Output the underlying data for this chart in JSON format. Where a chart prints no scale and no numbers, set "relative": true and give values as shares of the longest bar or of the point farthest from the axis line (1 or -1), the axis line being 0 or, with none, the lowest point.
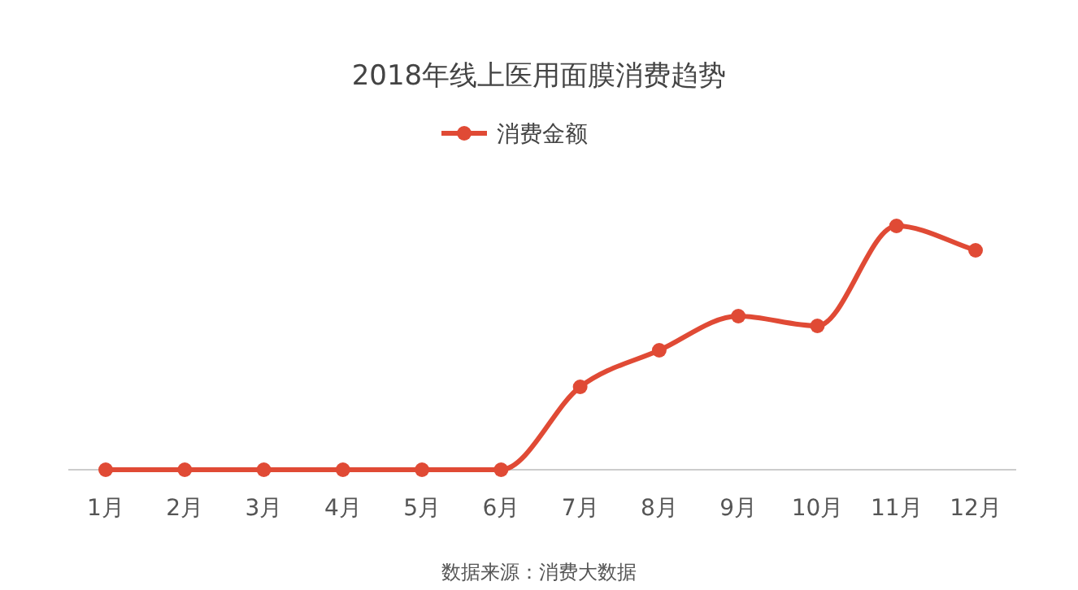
{
  "chart_data": {
    "type": "line",
    "title": "2018年线上医用面膜消费趋势",
    "relative": true,
    "legend": "top",
    "marker": "circle",
    "categories": [
      "1月",
      "2月",
      "3月",
      "4月",
      "5月",
      "6月",
      "7月",
      "8月",
      "9月",
      "10月",
      "11月",
      "12月"
    ],
    "series": [
      {
        "name": "消费金额",
        "color": "#e04a35",
        "values": [
          0,
          0,
          0,
          0,
          0,
          0,
          0.34,
          0.49,
          0.63,
          0.59,
          1,
          0.9
        ]
      }
    ],
    "annotations": [
      "数据来源：消费大数据"
    ]
  }
}
